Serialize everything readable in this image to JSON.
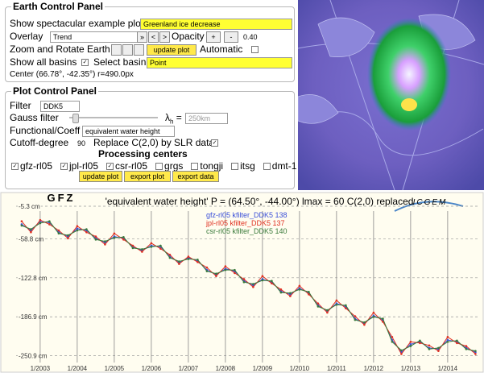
{
  "earth_panel": {
    "title": "Earth Control Panel",
    "example_label": "Show spectacular example plot",
    "example_value": "Greenland ice decrease",
    "overlay_label": "Overlay",
    "overlay_value": "Trend",
    "nav_buttons": [
      "»",
      "<",
      ">"
    ],
    "opacity_label": "Opacity",
    "opacity_buttons": [
      "+",
      "-"
    ],
    "opacity_value": "0.40",
    "zoom_label": "Zoom and Rotate Earth",
    "update_button": "update plot",
    "automatic_label": "Automatic",
    "automatic_checked": false,
    "basins_label": "Show all basins",
    "basins_checked": true,
    "select_basin_label": "Select basin",
    "basin_value": "Point",
    "center": "Center (66.78°, -42.35°) r=490.0px"
  },
  "plot_panel": {
    "title": "Plot Control Panel",
    "filter_label": "Filter",
    "filter_value": "DDK5",
    "gauss_label": "Gauss filter",
    "lambda_label": "λ",
    "lambda_sub": "h",
    "lambda_eq": "=",
    "gauss_value": "250km",
    "functional_label": "Functional/Coeff",
    "functional_value": "equivalent water height",
    "cutoff_label": "Cutoff-degree",
    "cutoff_value": "90",
    "replace_label": "Replace C(2,0) by SLR data",
    "replace_checked": true,
    "centers_title": "Processing centers",
    "centers": [
      "gfz-rl05",
      "jpl-rl05",
      "csr-rl05",
      "grgs",
      "tongji",
      "itsg",
      "dmt-1"
    ],
    "centers_checked": [
      true,
      true,
      true,
      false,
      false,
      false,
      false
    ],
    "buttons": [
      "update plot",
      "export plot",
      "export data"
    ]
  },
  "chart_data": {
    "type": "line",
    "title": "'equivalent water height' P = (64.50°, -44.00°) lmax = 60 C(2,0) replaced",
    "logos": [
      "GFZ",
      "ICGEM"
    ],
    "x": [
      2002.5,
      2002.75,
      2003,
      2003.25,
      2003.5,
      2003.75,
      2004,
      2004.25,
      2004.5,
      2004.75,
      2005,
      2005.25,
      2005.5,
      2005.75,
      2006,
      2006.25,
      2006.5,
      2006.75,
      2007,
      2007.25,
      2007.5,
      2007.75,
      2008,
      2008.25,
      2008.5,
      2008.75,
      2009,
      2009.25,
      2009.5,
      2009.75,
      2010,
      2010.25,
      2010.5,
      2010.75,
      2011,
      2011.25,
      2011.5,
      2011.75,
      2012,
      2012.25,
      2012.5,
      2012.75,
      2013,
      2013.25,
      2013.5,
      2013.75,
      2014,
      2014.25,
      2014.5,
      2014.75
    ],
    "series": [
      {
        "name": "gfz-rl05 kfilter_DDK5 138",
        "color": "#3a4fd8",
        "values": [
          -35,
          -45,
          -30,
          -32,
          -48,
          -55,
          -42,
          -45,
          -58,
          -65,
          -55,
          -58,
          -72,
          -78,
          -70,
          -72,
          -88,
          -98,
          -90,
          -95,
          -110,
          -118,
          -108,
          -112,
          -128,
          -135,
          -125,
          -130,
          -145,
          -150,
          -140,
          -148,
          -168,
          -178,
          -165,
          -170,
          -190,
          -198,
          -185,
          -192,
          -225,
          -245,
          -232,
          -228,
          -238,
          -240,
          -225,
          -228,
          -238,
          -245
        ]
      },
      {
        "name": "jpl-rl05 kfilter_DDK5 137",
        "color": "#e03020",
        "values": [
          -30,
          -48,
          -28,
          -35,
          -45,
          -58,
          -38,
          -48,
          -55,
          -68,
          -50,
          -60,
          -70,
          -80,
          -66,
          -75,
          -85,
          -100,
          -88,
          -97,
          -106,
          -120,
          -104,
          -115,
          -125,
          -138,
          -120,
          -132,
          -142,
          -153,
          -136,
          -150,
          -165,
          -180,
          -160,
          -173,
          -186,
          -200,
          -180,
          -195,
          -220,
          -248,
          -228,
          -230,
          -234,
          -243,
          -220,
          -230,
          -235,
          -248
        ]
      },
      {
        "name": "csr-rl05 kfilter_DDK5 140",
        "color": "#3a7a3a",
        "values": [
          -37,
          -43,
          -33,
          -30,
          -50,
          -53,
          -45,
          -43,
          -60,
          -63,
          -57,
          -56,
          -74,
          -76,
          -72,
          -70,
          -90,
          -96,
          -92,
          -93,
          -112,
          -116,
          -110,
          -110,
          -130,
          -133,
          -127,
          -128,
          -147,
          -148,
          -142,
          -146,
          -170,
          -176,
          -167,
          -168,
          -192,
          -196,
          -187,
          -190,
          -228,
          -242,
          -235,
          -226,
          -240,
          -238,
          -228,
          -226,
          -240,
          -243
        ]
      }
    ],
    "xlim": [
      2002.35,
      2014.85
    ],
    "xticks": [
      {
        "value": 2003,
        "label": "1/2003"
      },
      {
        "value": 2004,
        "label": "1/2004"
      },
      {
        "value": 2005,
        "label": "1/2005"
      },
      {
        "value": 2006,
        "label": "1/2006"
      },
      {
        "value": 2007,
        "label": "1/2007"
      },
      {
        "value": 2008,
        "label": "1/2008"
      },
      {
        "value": 2009,
        "label": "1/2009"
      },
      {
        "value": 2010,
        "label": "1/2010"
      },
      {
        "value": 2011,
        "label": "1/2011"
      },
      {
        "value": 2012,
        "label": "1/2012"
      },
      {
        "value": 2013,
        "label": "1/2013"
      },
      {
        "value": 2014,
        "label": "1/2014"
      }
    ],
    "ylim": [
      -262,
      0
    ],
    "yticks": [
      {
        "value": -5.3,
        "label": "-5.3 cm"
      },
      {
        "value": -58.8,
        "label": "-58.8 cm"
      },
      {
        "value": -122.8,
        "label": "-122.8 cm"
      },
      {
        "value": -186.9,
        "label": "-186.9 cm"
      },
      {
        "value": -250.9,
        "label": "-250.9 cm"
      }
    ],
    "grid": true
  }
}
